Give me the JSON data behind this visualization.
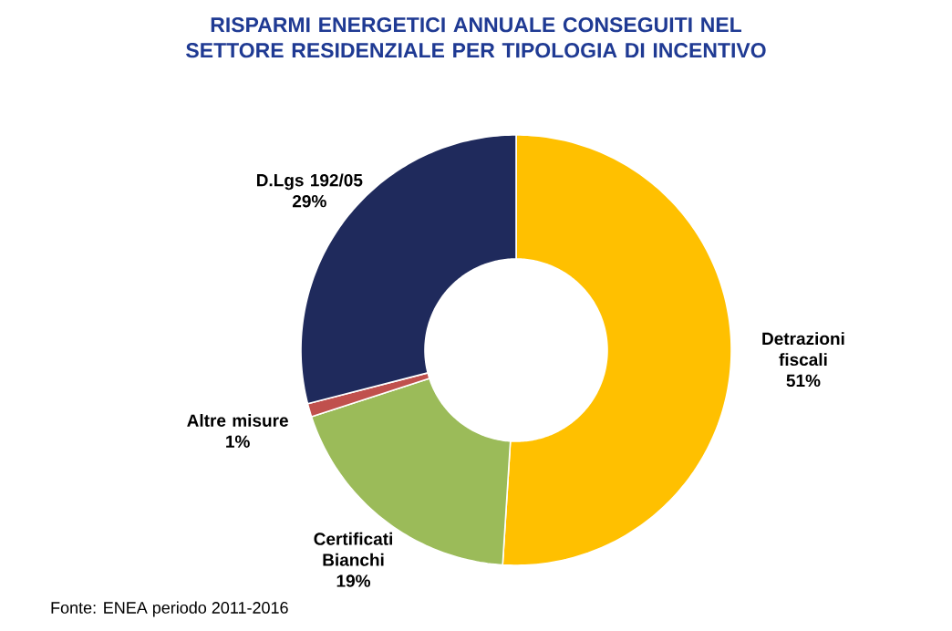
{
  "chart_data": {
    "type": "donut",
    "title": "RISPARMI ENERGETICI ANNUALE CONSEGUITI NEL SETTORE RESIDENZIALE PER TIPOLOGIA DI INCENTIVO",
    "categories": [
      "Detrazioni fiscali",
      "Certificati Bianchi",
      "Altre misure",
      "D.Lgs 192/05"
    ],
    "values": [
      51,
      19,
      1,
      29
    ],
    "colors": [
      "#ffc000",
      "#9bbb59",
      "#c0504d",
      "#1f2a5c"
    ],
    "value_labels": [
      "51%",
      "19%",
      "1%",
      "29%"
    ],
    "annotations": [
      "Fonte: ENEA periodo 2011-2016"
    ]
  }
}
